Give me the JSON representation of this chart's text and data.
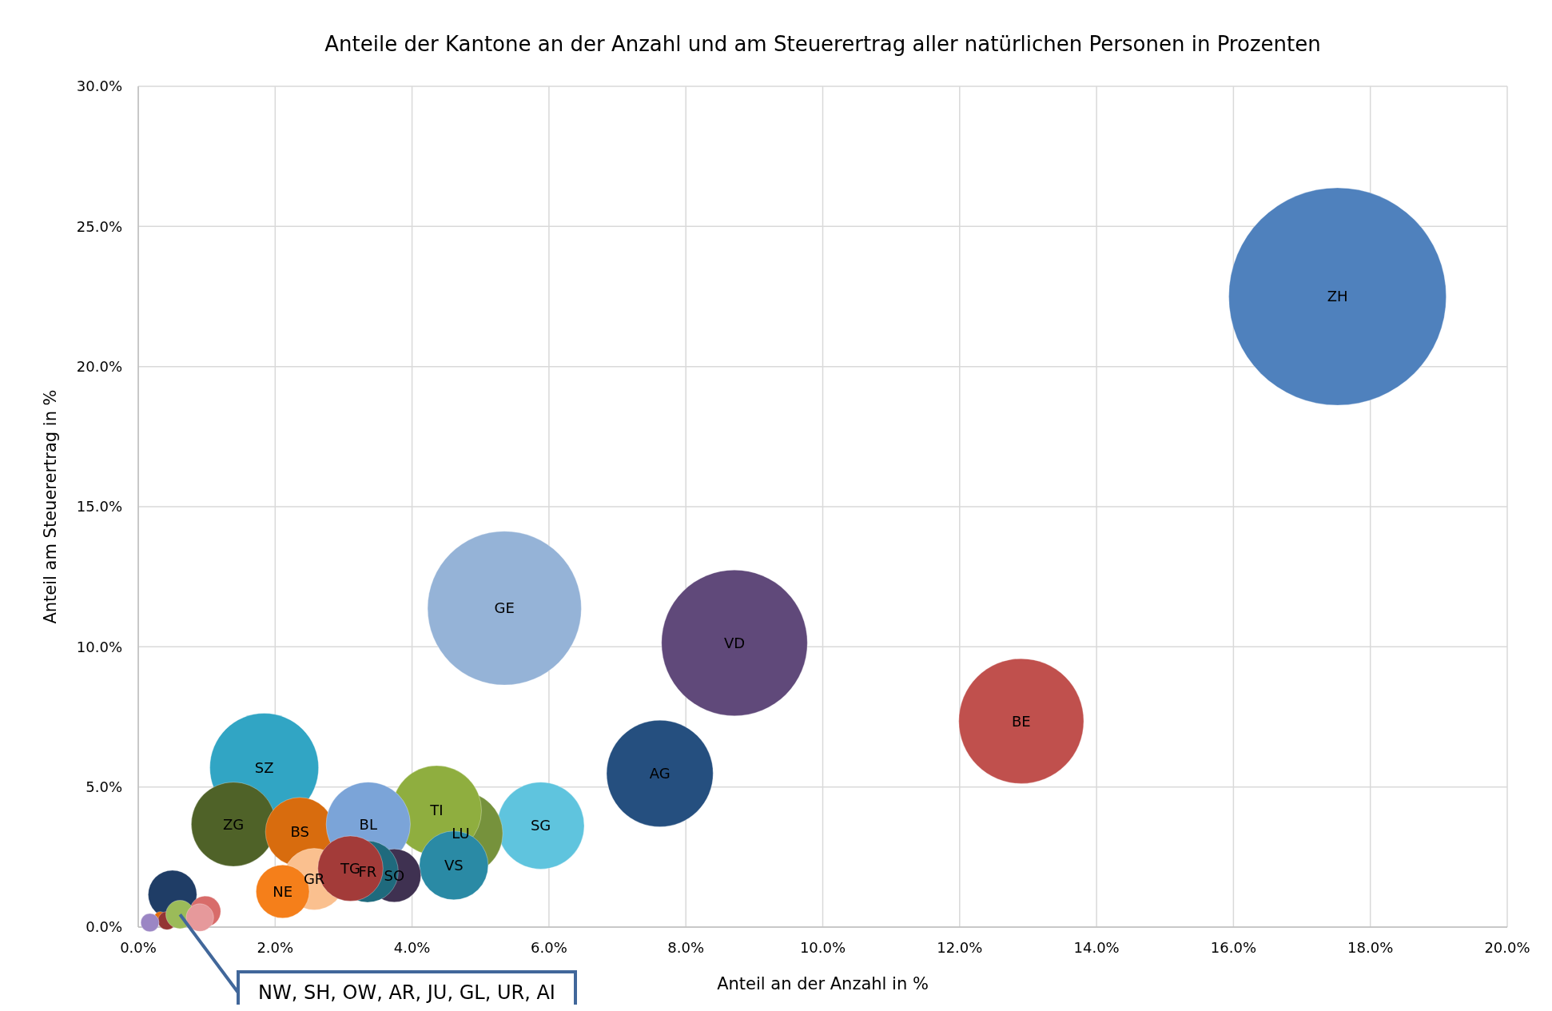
{
  "chart_data": {
    "type": "bubble",
    "title": "Anteile der Kantone an der Anzahl und am Steuerertrag aller natürlichen Personen in Prozenten",
    "xlabel": "Anteil an der Anzahl in %",
    "ylabel": "Anteil am Steuerertrag in %",
    "xlim": [
      0,
      20
    ],
    "ylim": [
      0,
      30
    ],
    "xticks": [
      {
        "value": 0,
        "label": "0.0%"
      },
      {
        "value": 2,
        "label": "2.0%"
      },
      {
        "value": 4,
        "label": "4.0%"
      },
      {
        "value": 6,
        "label": "6.0%"
      },
      {
        "value": 8,
        "label": "8.0%"
      },
      {
        "value": 10,
        "label": "10.0%"
      },
      {
        "value": 12,
        "label": "12.0%"
      },
      {
        "value": 14,
        "label": "14.0%"
      },
      {
        "value": 16,
        "label": "16.0%"
      },
      {
        "value": 18,
        "label": "18.0%"
      },
      {
        "value": 20,
        "label": "20.0%"
      }
    ],
    "yticks": [
      {
        "value": 0,
        "label": "0.0%"
      },
      {
        "value": 5,
        "label": "5.0%"
      },
      {
        "value": 10,
        "label": "10.0%"
      },
      {
        "value": 15,
        "label": "15.0%"
      },
      {
        "value": 20,
        "label": "20.0%"
      },
      {
        "value": 25,
        "label": "25.0%"
      },
      {
        "value": 30,
        "label": "30.0%"
      }
    ],
    "grid": true,
    "series": [
      {
        "name": "ZH",
        "color": "#4f81bd",
        "x": [
          17.52
        ],
        "values": [
          22.5
        ],
        "sizes": [
          1
        ]
      },
      {
        "name": "GE",
        "color": "#95b3d7",
        "x": [
          5.35
        ],
        "values": [
          11.38
        ],
        "sizes": [
          0.5
        ]
      },
      {
        "name": "VD",
        "color": "#60497a",
        "x": [
          8.71
        ],
        "values": [
          10.14
        ],
        "sizes": [
          0.45
        ]
      },
      {
        "name": "BE",
        "color": "#c0504d",
        "x": [
          12.9
        ],
        "values": [
          7.35
        ],
        "sizes": [
          0.33
        ]
      },
      {
        "name": "AG",
        "color": "#254f7f",
        "x": [
          7.62
        ],
        "values": [
          5.48
        ],
        "sizes": [
          0.24
        ]
      },
      {
        "name": "SZ",
        "color": "#31a5c4",
        "x": [
          1.84
        ],
        "values": [
          5.69
        ],
        "sizes": [
          0.25
        ]
      },
      {
        "name": "SG",
        "color": "#5fc4de",
        "x": [
          5.88
        ],
        "values": [
          3.62
        ],
        "sizes": [
          0.16
        ]
      },
      {
        "name": "ZG",
        "color": "#4f6228",
        "x": [
          1.39
        ],
        "values": [
          3.67
        ],
        "sizes": [
          0.15
        ]
      },
      {
        "name": "LU",
        "color": "#76923c",
        "x": [
          4.71
        ],
        "values": [
          3.34
        ],
        "sizes": [
          0.15
        ]
      },
      {
        "name": "TI",
        "color": "#8fae3f",
        "x": [
          4.36
        ],
        "values": [
          4.16
        ],
        "sizes": [
          0.17
        ]
      },
      {
        "name": "BS",
        "color": "#d86c0e",
        "x": [
          2.36
        ],
        "values": [
          3.4
        ],
        "sizes": [
          0.1
        ]
      },
      {
        "name": "BL",
        "color": "#7ba4d8",
        "x": [
          3.36
        ],
        "values": [
          3.67
        ],
        "sizes": [
          0.15
        ]
      },
      {
        "name": "VS",
        "color": "#2a8aa5",
        "x": [
          4.61
        ],
        "values": [
          2.2
        ],
        "sizes": [
          0.1
        ]
      },
      {
        "name": "SO",
        "color": "#3f3151",
        "x": [
          3.74
        ],
        "values": [
          1.84
        ],
        "sizes": [
          0.06
        ]
      },
      {
        "name": "FR",
        "color": "#1f6a7d",
        "x": [
          3.35
        ],
        "values": [
          1.98
        ],
        "sizes": [
          0.08
        ]
      },
      {
        "name": "GR",
        "color": "#fac08f",
        "x": [
          2.57
        ],
        "values": [
          1.71
        ],
        "sizes": [
          0.08
        ]
      },
      {
        "name": "TG",
        "color": "#a33b39",
        "x": [
          3.1
        ],
        "values": [
          2.09
        ],
        "sizes": [
          0.09
        ]
      },
      {
        "name": "NE",
        "color": "#f57f1a",
        "x": [
          2.11
        ],
        "values": [
          1.27
        ],
        "sizes": [
          0.06
        ]
      },
      {
        "color": "#1f3d66",
        "x": [
          0.5
        ],
        "values": [
          1.16
        ],
        "sizes": [
          0.05
        ]
      },
      {
        "color": "#d86c6a",
        "x": [
          0.98
        ],
        "values": [
          0.56
        ],
        "sizes": [
          0.02
        ]
      },
      {
        "color": "#e46c0a",
        "x": [
          0.32
        ],
        "values": [
          0.34
        ],
        "sizes": [
          0.003
        ]
      },
      {
        "color": "#943634",
        "x": [
          0.42
        ],
        "values": [
          0.23
        ],
        "sizes": [
          0.007
        ]
      },
      {
        "color": "#9bbb59",
        "x": [
          0.61
        ],
        "values": [
          0.45
        ],
        "sizes": [
          0.017
        ]
      },
      {
        "color": "#e6999b",
        "x": [
          0.9
        ],
        "values": [
          0.34
        ],
        "sizes": [
          0.016
        ]
      },
      {
        "color": "#9b86c4",
        "x": [
          0.17
        ],
        "values": [
          0.16
        ],
        "sizes": [
          0.007
        ]
      }
    ],
    "annotations": [
      {
        "text": "NW, SH, OW, AR, JU, GL, UR, AI",
        "x": 0.61,
        "y": 0.45
      }
    ]
  }
}
